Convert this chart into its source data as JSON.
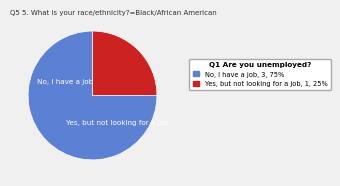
{
  "title": "Q5 5. What is your race/ethnicity?=Black/African American",
  "legend_title": "Q1 Are you unemployed?",
  "slices": [
    {
      "label": "No, I have a job",
      "value": 75,
      "color": "#5b80d4",
      "legend_label": "No, I have a job, 3, 75%"
    },
    {
      "label": "Yes, but not looking for a job",
      "value": 25,
      "color": "#cc2222",
      "legend_label": "Yes, but not looking for a job, 1, 25%"
    }
  ],
  "title_fontsize": 5.0,
  "label_fontsize": 5.2,
  "legend_fontsize": 4.8,
  "legend_title_fontsize": 5.2,
  "startangle": 90,
  "bg_color": "#f0f0f0"
}
